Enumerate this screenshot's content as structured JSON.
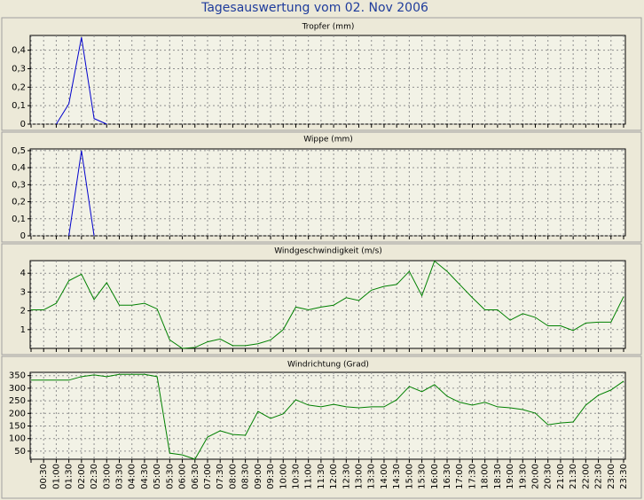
{
  "title": "Tagesauswertung vom 02. Nov 2006",
  "chart_data": [
    {
      "type": "line",
      "title": "Tropfer (mm)",
      "color": "#0000cc",
      "grid": true,
      "ylim": [
        0,
        0.48
      ],
      "yticks": [
        0,
        {
          "value": 0.1,
          "label": "0,1"
        },
        {
          "value": 0.2,
          "label": "0,2"
        },
        {
          "value": 0.3,
          "label": "0,3"
        },
        {
          "value": 0.4,
          "label": "0,4"
        }
      ],
      "values": [
        null,
        null,
        0,
        0.11,
        0.47,
        0.03,
        0,
        null,
        null,
        null,
        null,
        null,
        null,
        null,
        null,
        null,
        null,
        null,
        null,
        null,
        null,
        null,
        null,
        null,
        null,
        null,
        null,
        null,
        null,
        null,
        null,
        null,
        null,
        null,
        null,
        null,
        null,
        null,
        null,
        null,
        null,
        null,
        null,
        null,
        null,
        null,
        null,
        null
      ]
    },
    {
      "type": "line",
      "title": "Wippe (mm)",
      "color": "#0000cc",
      "grid": true,
      "ylim": [
        0,
        0.51
      ],
      "yticks": [
        0,
        {
          "value": 0.1,
          "label": "0,1"
        },
        {
          "value": 0.2,
          "label": "0,2"
        },
        {
          "value": 0.3,
          "label": "0,3"
        },
        {
          "value": 0.4,
          "label": "0,4"
        },
        {
          "value": 0.5,
          "label": "0,5"
        }
      ],
      "values": [
        null,
        null,
        null,
        0,
        0.5,
        0,
        null,
        null,
        null,
        null,
        null,
        null,
        null,
        null,
        null,
        null,
        null,
        null,
        null,
        null,
        null,
        null,
        null,
        null,
        null,
        null,
        null,
        null,
        null,
        null,
        null,
        null,
        null,
        null,
        null,
        null,
        null,
        null,
        null,
        null,
        null,
        null,
        null,
        null,
        null,
        null,
        null,
        null
      ]
    },
    {
      "type": "line",
      "title": "Windgeschwindigkeit (m/s)",
      "color": "#008000",
      "grid": true,
      "ylim": [
        0,
        4.67
      ],
      "yticks": [
        1,
        2,
        3,
        4
      ],
      "values": [
        2.05,
        2.05,
        2.4,
        3.6,
        3.95,
        2.6,
        3.5,
        2.3,
        2.3,
        2.4,
        2.1,
        0.45,
        0,
        0.05,
        0.35,
        0.5,
        0.15,
        0.15,
        0.25,
        0.45,
        1.0,
        2.2,
        2.05,
        2.2,
        2.3,
        2.7,
        2.55,
        3.1,
        3.3,
        3.4,
        4.1,
        2.8,
        4.65,
        4.1,
        3.4,
        2.7,
        2.05,
        2.05,
        1.5,
        1.85,
        1.65,
        1.2,
        1.2,
        0.95,
        1.35,
        1.4,
        1.4,
        2.75
      ]
    },
    {
      "type": "line",
      "title": "Windrichtung (Grad)",
      "color": "#008000",
      "grid": true,
      "ylim": [
        18,
        363
      ],
      "yticks": [
        50,
        100,
        150,
        200,
        250,
        300,
        350
      ],
      "categories": [
        null,
        "00:30",
        "01:00",
        "01:30",
        "02:00",
        "02:30",
        "03:00",
        "03:30",
        "04:00",
        "04:30",
        "05:00",
        "05:30",
        "06:00",
        "06:30",
        "07:00",
        "07:30",
        "08:00",
        "08:30",
        "09:00",
        "09:30",
        "10:00",
        "10:30",
        "11:00",
        "11:30",
        "12:00",
        "12:30",
        "13:00",
        "13:30",
        "14:00",
        "14:30",
        "15:00",
        "15:30",
        "16:00",
        "16:30",
        "17:00",
        "17:30",
        "18:00",
        "18:30",
        "19:00",
        "19:30",
        "20:00",
        "20:30",
        "21:00",
        "21:30",
        "22:00",
        "22:30",
        "23:00",
        "23:30"
      ],
      "values": [
        332,
        332,
        332,
        332,
        346,
        353,
        346,
        355,
        355,
        355,
        346,
        42,
        35,
        18,
        106,
        131,
        116,
        113,
        208,
        180,
        198,
        254,
        233,
        226,
        236,
        226,
        222,
        226,
        226,
        254,
        307,
        286,
        314,
        268,
        244,
        233,
        244,
        226,
        222,
        215,
        201,
        155,
        162,
        166,
        233,
        272,
        293,
        328
      ]
    }
  ]
}
